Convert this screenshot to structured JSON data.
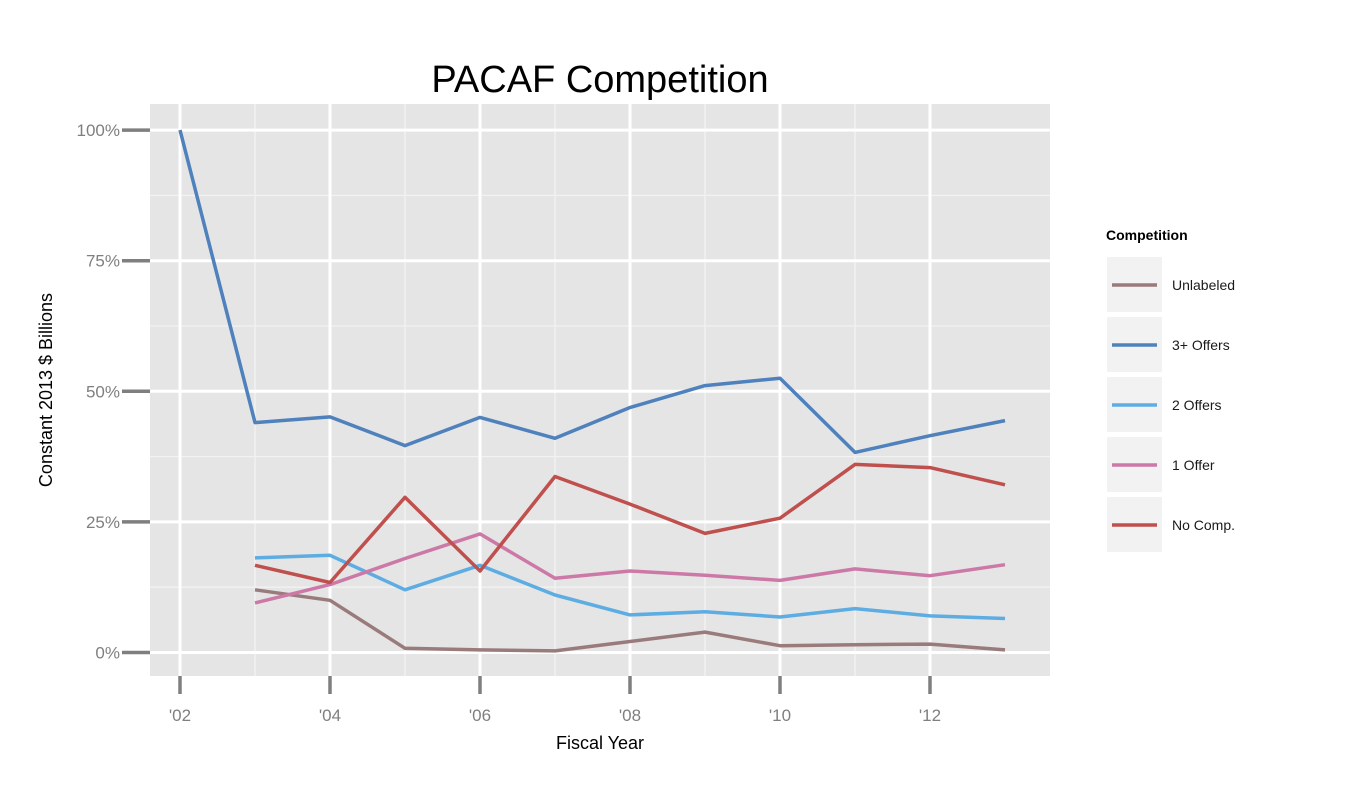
{
  "chart_data": {
    "type": "line",
    "title": "PACAF Competition",
    "xlabel": "Fiscal Year",
    "ylabel": "Constant 2013 $ Billions",
    "x": [
      2002,
      2003,
      2004,
      2005,
      2006,
      2007,
      2008,
      2009,
      2010,
      2011,
      2012,
      2013
    ],
    "xlim": [
      2001.6,
      2013.6
    ],
    "ylim": [
      -0.045,
      1.05
    ],
    "x_ticks": [
      2002,
      2004,
      2006,
      2008,
      2010,
      2012
    ],
    "x_tick_labels": [
      "'02",
      "'04",
      "'06",
      "'08",
      "'10",
      "'12"
    ],
    "y_ticks": [
      0,
      0.25,
      0.5,
      0.75,
      1.0
    ],
    "y_tick_labels": [
      "0%",
      "25%",
      "50%",
      "75%",
      "100%"
    ],
    "grid": true,
    "legend_title": "Competition",
    "legend_position": "right",
    "series": [
      {
        "name": "Unlabeled",
        "color": "#9a7b7b",
        "values": [
          null,
          0.12,
          0.1,
          0.008,
          0.005,
          0.003,
          0.021,
          0.039,
          0.013,
          0.015,
          0.016,
          0.005
        ]
      },
      {
        "name": "3+ Offers",
        "color": "#4f81bd",
        "values": [
          1.0,
          0.44,
          0.451,
          0.396,
          0.45,
          0.41,
          0.469,
          0.511,
          0.525,
          0.383,
          0.415,
          0.444
        ]
      },
      {
        "name": "2 Offers",
        "color": "#5dade2",
        "values": [
          null,
          0.181,
          0.186,
          0.12,
          0.167,
          0.11,
          0.072,
          0.078,
          0.068,
          0.084,
          0.07,
          0.065
        ]
      },
      {
        "name": "1 Offer",
        "color": "#cc79a7",
        "values": [
          null,
          0.095,
          0.13,
          0.18,
          0.227,
          0.142,
          0.156,
          0.148,
          0.138,
          0.16,
          0.147,
          0.168
        ]
      },
      {
        "name": "No Comp.",
        "color": "#c0504d",
        "values": [
          null,
          0.167,
          0.134,
          0.297,
          0.156,
          0.337,
          0.284,
          0.228,
          0.257,
          0.36,
          0.354,
          0.321
        ]
      }
    ]
  }
}
